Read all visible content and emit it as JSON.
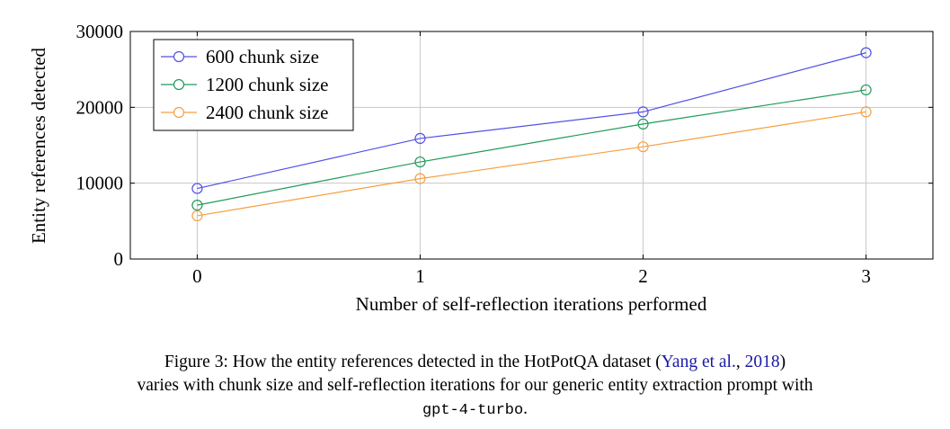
{
  "chart_data": {
    "type": "line",
    "x": [
      0,
      1,
      2,
      3
    ],
    "series": [
      {
        "name": "600 chunk size",
        "color": "#5050e6",
        "values": [
          9300,
          15900,
          19400,
          27200
        ]
      },
      {
        "name": "1200 chunk size",
        "color": "#1f9a5a",
        "values": [
          7100,
          12800,
          17800,
          22300
        ]
      },
      {
        "name": "2400 chunk size",
        "color": "#f5a040",
        "values": [
          5700,
          10600,
          14800,
          19400
        ]
      }
    ],
    "xlabel": "Number of self-reflection iterations performed",
    "ylabel": "Entity references detected",
    "xticks": [
      "0",
      "1",
      "2",
      "3"
    ],
    "yticks": [
      "0",
      "10000",
      "20000",
      "30000"
    ],
    "xlim": [
      -0.3,
      3.3
    ],
    "ylim": [
      0,
      30000
    ],
    "grid": true,
    "legend_position": "top-left",
    "marker": "open-circle"
  },
  "caption": {
    "prefix": "Figure 3: How the entity references detected in the HotPotQA dataset (",
    "ref_author": "Yang et al.",
    "ref_sep": ", ",
    "ref_year": "2018",
    "after_ref": ")",
    "line2": "varies with chunk size and self-reflection iterations for our generic entity extraction prompt with",
    "code": "gpt-4-turbo",
    "end": "."
  }
}
